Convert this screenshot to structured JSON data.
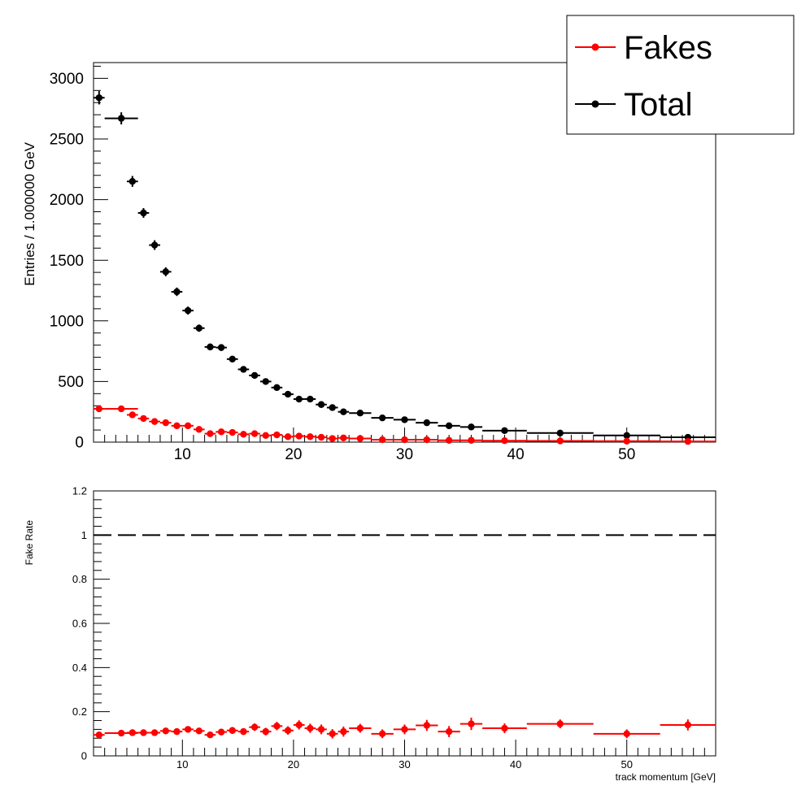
{
  "chart_data": [
    {
      "type": "scatter",
      "panel": "top",
      "ylabel": "Entries / 1.000000 GeV",
      "xlim": [
        2,
        58
      ],
      "ylim": [
        0,
        3130
      ],
      "x_ticks": [
        10,
        20,
        30,
        40,
        50
      ],
      "y_ticks": [
        0,
        500,
        1000,
        1500,
        2000,
        2500,
        3000
      ],
      "legend": {
        "placement": "top-right",
        "entries": [
          "Fakes",
          "Total"
        ]
      },
      "series": [
        {
          "name": "Total",
          "color": "#000000",
          "x": [
            2.5,
            4.5,
            5.5,
            6.5,
            7.5,
            8.5,
            9.5,
            10.5,
            11.5,
            12.5,
            13.5,
            14.5,
            15.5,
            16.5,
            17.5,
            18.5,
            19.5,
            20.5,
            21.5,
            22.5,
            23.5,
            24.5,
            26,
            28,
            30,
            32,
            34,
            36,
            39,
            44,
            50,
            55.5
          ],
          "x_low": [
            2,
            3,
            5,
            6,
            7,
            8,
            9,
            10,
            11,
            12,
            13,
            14,
            15,
            16,
            17,
            18,
            19,
            20,
            21,
            22,
            23,
            24,
            25,
            27,
            29,
            31,
            33,
            35,
            37,
            41,
            47,
            53
          ],
          "x_high": [
            3,
            6,
            6,
            7,
            8,
            9,
            10,
            11,
            12,
            13,
            14,
            15,
            16,
            17,
            18,
            19,
            20,
            21,
            22,
            23,
            24,
            25,
            27,
            29,
            31,
            33,
            35,
            37,
            41,
            47,
            53,
            58
          ],
          "y": [
            2840,
            2670,
            2150,
            1890,
            1625,
            1405,
            1240,
            1085,
            940,
            785,
            780,
            685,
            600,
            550,
            500,
            450,
            395,
            355,
            355,
            310,
            285,
            250,
            240,
            200,
            185,
            160,
            135,
            125,
            95,
            75,
            55,
            40
          ],
          "y_err": [
            55,
            50,
            45,
            40,
            40,
            37,
            35,
            33,
            30,
            28,
            28,
            26,
            25,
            23,
            22,
            21,
            20,
            19,
            19,
            18,
            17,
            16,
            16,
            14,
            14,
            13,
            12,
            11,
            10,
            9,
            7,
            6
          ]
        },
        {
          "name": "Fakes",
          "color": "#ff0000",
          "x": [
            2.5,
            4.5,
            5.5,
            6.5,
            7.5,
            8.5,
            9.5,
            10.5,
            11.5,
            12.5,
            13.5,
            14.5,
            15.5,
            16.5,
            17.5,
            18.5,
            19.5,
            20.5,
            21.5,
            22.5,
            23.5,
            24.5,
            26,
            28,
            30,
            32,
            34,
            36,
            39,
            44,
            50,
            55.5
          ],
          "x_low": [
            2,
            3,
            5,
            6,
            7,
            8,
            9,
            10,
            11,
            12,
            13,
            14,
            15,
            16,
            17,
            18,
            19,
            20,
            21,
            22,
            23,
            24,
            25,
            27,
            29,
            31,
            33,
            35,
            37,
            41,
            47,
            53
          ],
          "x_high": [
            3,
            6,
            6,
            7,
            8,
            9,
            10,
            11,
            12,
            13,
            14,
            15,
            16,
            17,
            18,
            19,
            20,
            21,
            22,
            23,
            24,
            25,
            27,
            29,
            31,
            33,
            35,
            37,
            41,
            47,
            53,
            58
          ],
          "y": [
            275,
            275,
            225,
            195,
            170,
            160,
            135,
            135,
            105,
            70,
            85,
            80,
            65,
            70,
            55,
            60,
            45,
            50,
            45,
            40,
            30,
            35,
            30,
            20,
            20,
            20,
            15,
            15,
            12,
            10,
            8,
            6
          ],
          "y_err": [
            17,
            17,
            15,
            14,
            13,
            13,
            12,
            12,
            10,
            8,
            9,
            9,
            8,
            8,
            7,
            8,
            7,
            7,
            7,
            6,
            5,
            6,
            5,
            4,
            4,
            4,
            4,
            4,
            3,
            3,
            3,
            2
          ]
        }
      ]
    },
    {
      "type": "scatter",
      "panel": "bottom",
      "xlabel": "track momentum [GeV]",
      "ylabel": "Fake Rate",
      "xlim": [
        2,
        58
      ],
      "ylim": [
        0,
        1.2
      ],
      "x_ticks": [
        10,
        20,
        30,
        40,
        50
      ],
      "y_ticks": [
        0,
        0.2,
        0.4,
        0.6,
        0.8,
        1,
        1.2
      ],
      "y_tick_labels": [
        "0",
        "0.2",
        "0.4",
        "0.6",
        "0.8",
        "1",
        "1.2"
      ],
      "reference_line": {
        "y": 1.0,
        "style": "dashed",
        "color": "#000000"
      },
      "series": [
        {
          "name": "Fake Rate",
          "color": "#ff0000",
          "x": [
            2.5,
            4.5,
            5.5,
            6.5,
            7.5,
            8.5,
            9.5,
            10.5,
            11.5,
            12.5,
            13.5,
            14.5,
            15.5,
            16.5,
            17.5,
            18.5,
            19.5,
            20.5,
            21.5,
            22.5,
            23.5,
            24.5,
            26,
            28,
            30,
            32,
            34,
            36,
            39,
            44,
            50,
            55.5
          ],
          "x_low": [
            2,
            3,
            5,
            6,
            7,
            8,
            9,
            10,
            11,
            12,
            13,
            14,
            15,
            16,
            17,
            18,
            19,
            20,
            21,
            22,
            23,
            24,
            25,
            27,
            29,
            31,
            33,
            35,
            37,
            41,
            47,
            53
          ],
          "x_high": [
            3,
            6,
            6,
            7,
            8,
            9,
            10,
            11,
            12,
            13,
            14,
            15,
            16,
            17,
            18,
            19,
            20,
            21,
            22,
            23,
            24,
            25,
            27,
            29,
            31,
            33,
            35,
            37,
            41,
            47,
            53,
            58
          ],
          "y": [
            0.095,
            0.103,
            0.105,
            0.105,
            0.105,
            0.113,
            0.11,
            0.12,
            0.113,
            0.095,
            0.108,
            0.115,
            0.11,
            0.13,
            0.11,
            0.135,
            0.115,
            0.14,
            0.125,
            0.12,
            0.1,
            0.11,
            0.125,
            0.1,
            0.12,
            0.138,
            0.11,
            0.145,
            0.125,
            0.145,
            0.1,
            0.14
          ],
          "y_err": [
            0.008,
            0.008,
            0.009,
            0.01,
            0.01,
            0.011,
            0.011,
            0.012,
            0.013,
            0.013,
            0.014,
            0.015,
            0.015,
            0.017,
            0.017,
            0.019,
            0.019,
            0.021,
            0.021,
            0.022,
            0.021,
            0.023,
            0.02,
            0.02,
            0.022,
            0.025,
            0.025,
            0.028,
            0.022,
            0.02,
            0.02,
            0.025
          ]
        }
      ]
    }
  ]
}
